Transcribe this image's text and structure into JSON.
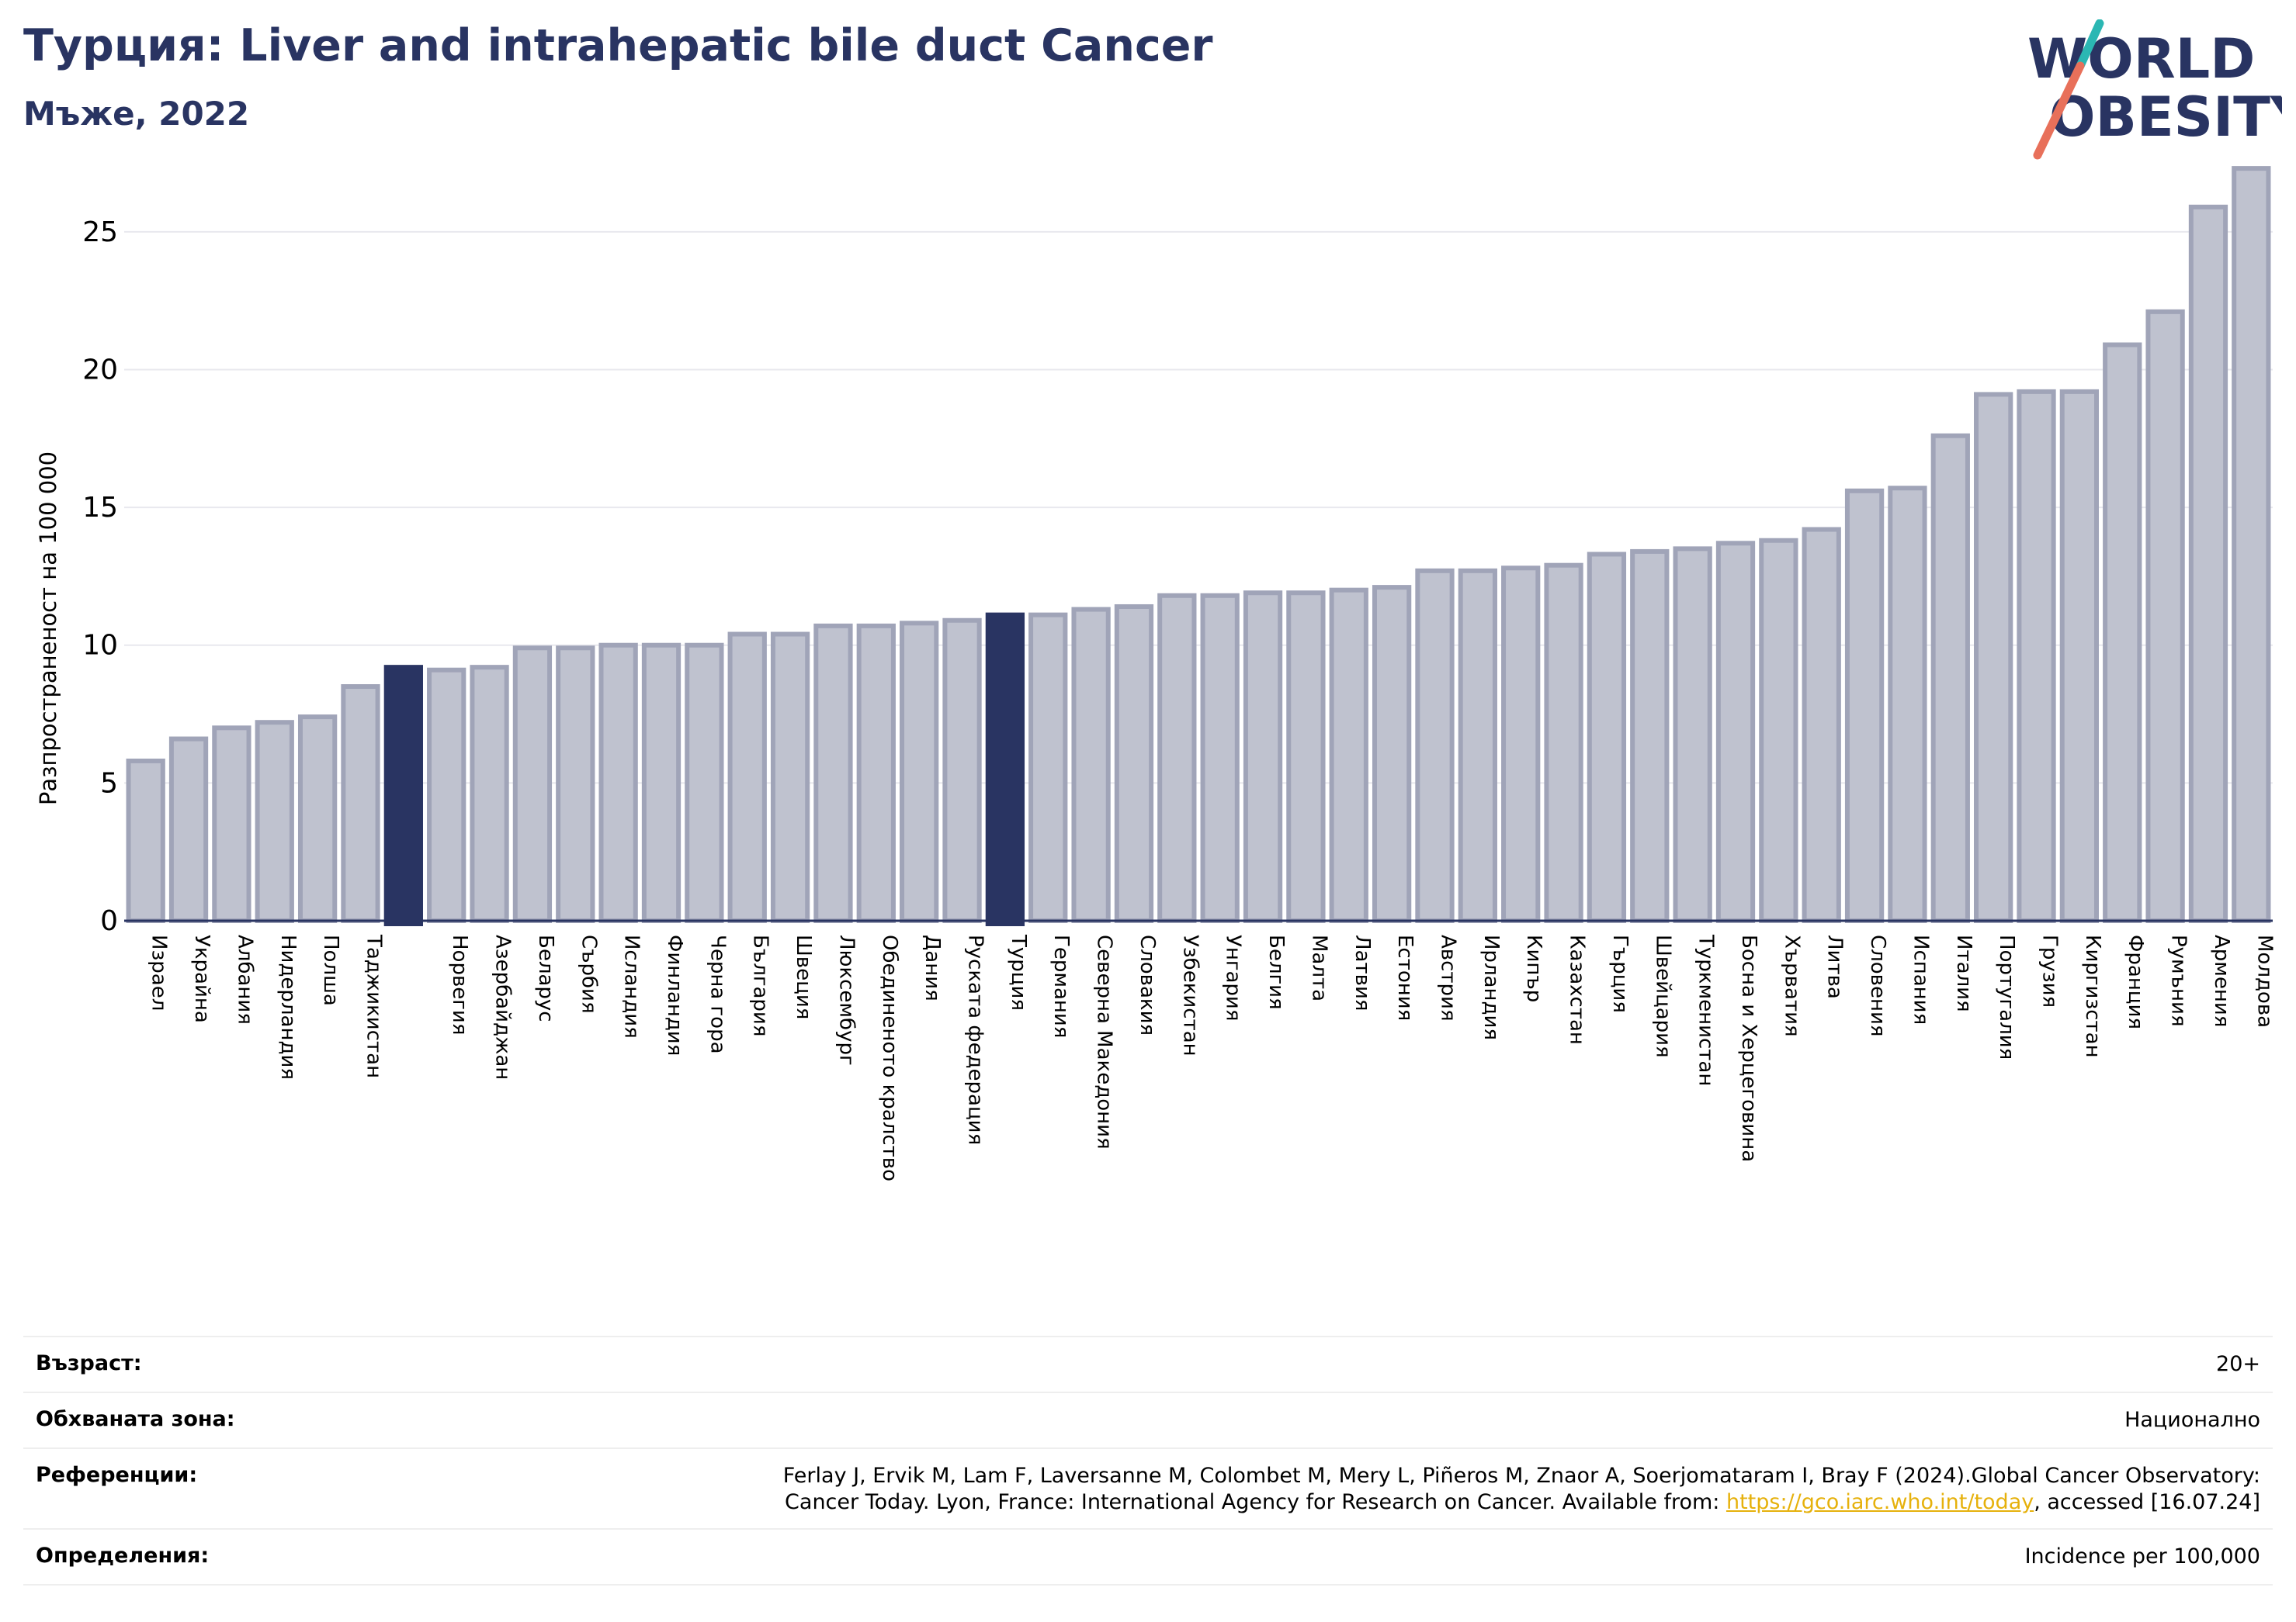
{
  "header": {
    "title": "Турция: Liver and intrahepatic bile duct Cancer",
    "subtitle": "Мъже, 2022"
  },
  "logo": {
    "line1": "WORLD",
    "line2": "OBESITY"
  },
  "chart_data": {
    "type": "bar",
    "ylabel": "Разпространеност  на 100 000",
    "xlabel": "",
    "ylim": [
      0,
      27.5
    ],
    "yticks": [
      0,
      5,
      10,
      15,
      20,
      25
    ],
    "grid": true,
    "highlight": [
      "",
      "Турция"
    ],
    "categories": [
      "Израел",
      "Украйна",
      "Албания",
      "Нидерландия",
      "Полша",
      "Таджикистан",
      "",
      "Норвегия",
      "Азербайджан",
      "Беларус",
      "Сърбия",
      "Исландия",
      "Финландия",
      "Черна гора",
      "България",
      "Швеция",
      "Люксембург",
      "Обединеното кралство",
      "Дания",
      "Руската федерация",
      "Турция",
      "Германия",
      "Северна Македония",
      "Словакия",
      "Узбекистан",
      "Унгария",
      "Белгия",
      "Малта",
      "Латвия",
      "Естония",
      "Австрия",
      "Ирландия",
      "Кипър",
      "Казахстан",
      "Гърция",
      "Швейцария",
      "Туркменистан",
      "Босна и Херцеговина",
      "Хърватия",
      "Литва",
      "Словения",
      "Испания",
      "Италия",
      "Португалия",
      "Грузия",
      "Киргизстан",
      "Франция",
      "Румъния",
      "Армения",
      "Молдова"
    ],
    "values": [
      5.8,
      6.6,
      7.0,
      7.2,
      7.4,
      8.5,
      9.2,
      9.1,
      9.2,
      9.9,
      9.9,
      10.0,
      10.0,
      10.0,
      10.4,
      10.4,
      10.7,
      10.7,
      10.8,
      10.9,
      11.1,
      11.1,
      11.3,
      11.4,
      11.8,
      11.8,
      11.9,
      11.9,
      12.0,
      12.1,
      12.7,
      12.7,
      12.8,
      12.9,
      13.3,
      13.4,
      13.5,
      13.7,
      13.8,
      14.2,
      15.6,
      15.7,
      17.6,
      19.1,
      19.2,
      19.2,
      20.9,
      22.1,
      25.9,
      27.3
    ],
    "colors": {
      "bar": "#bfc2cf",
      "bar_edge": "#a0a4b8",
      "highlight": "#293462",
      "axis": "#293462",
      "grid": "#e8e8ee"
    }
  },
  "meta": [
    {
      "key": "Възраст:",
      "value": "20+"
    },
    {
      "key": "Обхваната зона:",
      "value": "Национално"
    },
    {
      "key": "Референции:",
      "value_line1": "Ferlay J, Ervik M, Lam F, Laversanne M, Colombet M, Mery L, Piñeros M, Znaor A, Soerjomataram I, Bray F (2024).Global Cancer Observatory:",
      "value_line2_pre": "Cancer Today. Lyon, France: International Agency for Research on Cancer. Available from: ",
      "link": "https://gco.iarc.who.int/today",
      "value_line2_post": ", accessed [16.07.24]"
    },
    {
      "key": "Определения:",
      "value": "Incidence per 100,000"
    }
  ]
}
